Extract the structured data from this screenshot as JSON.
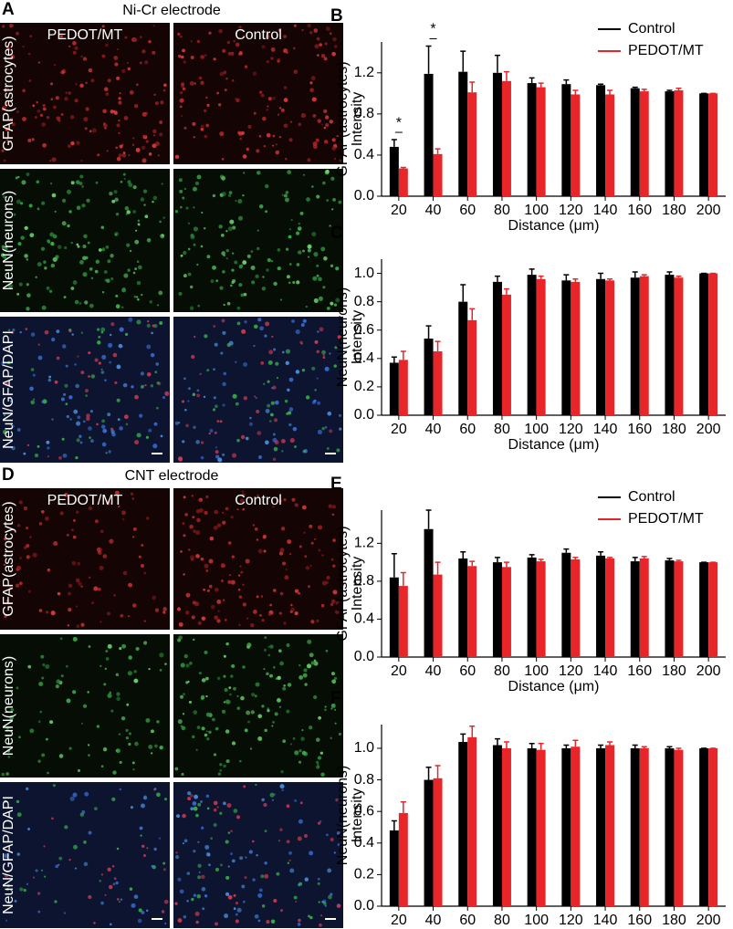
{
  "figure": {
    "sections": [
      {
        "letter": "A",
        "title": "Ni-Cr electrode",
        "columns": [
          "PEDOT/MT",
          "Control"
        ],
        "rows": [
          "GFAP(astrocytes)",
          "NeuN(neurons)",
          "NeuN/GFAP/DAPI"
        ]
      },
      {
        "letter": "D",
        "title": "CNT electrode",
        "columns": [
          "PEDOT/MT",
          "Control"
        ],
        "rows": [
          "GFAP(astrocytes)",
          "NeuN(neurons)",
          "NeuN/GFAP/DAPI"
        ]
      }
    ]
  },
  "chart_data": [
    {
      "type": "bar",
      "panel": "B",
      "xlabel": "Distance (μm)",
      "ylabel": [
        "GFAP(astrocytes)",
        "Intensity"
      ],
      "categories": [
        "20",
        "40",
        "60",
        "80",
        "100",
        "120",
        "140",
        "160",
        "180",
        "200"
      ],
      "series": [
        {
          "name": "Control",
          "color": "#000000",
          "values": [
            0.48,
            1.19,
            1.21,
            1.2,
            1.1,
            1.09,
            1.08,
            1.05,
            1.02,
            1.0
          ],
          "errors": [
            0.07,
            0.27,
            0.2,
            0.17,
            0.05,
            0.04,
            0.01,
            0.01,
            0.01,
            0.0
          ]
        },
        {
          "name": "PEDOT/MT",
          "color": "#e8262a",
          "values": [
            0.27,
            0.41,
            1.01,
            1.12,
            1.06,
            0.99,
            0.99,
            1.02,
            1.03,
            1.0
          ],
          "errors": [
            0.01,
            0.05,
            0.1,
            0.09,
            0.04,
            0.04,
            0.04,
            0.02,
            0.02,
            0.0
          ]
        }
      ],
      "ylim": [
        0,
        1.5
      ],
      "yticks": [
        {
          "value": 0,
          "label": "0.0"
        },
        0.4,
        0.8,
        1.2
      ],
      "legend": "upper right",
      "annotations": [
        {
          "text": "*",
          "category": "20"
        },
        {
          "text": "*",
          "category": "40"
        }
      ]
    },
    {
      "type": "bar",
      "panel": "C",
      "xlabel": "Distance (μm)",
      "ylabel": [
        "NeuN(neurons)",
        "Intensity"
      ],
      "categories": [
        "20",
        "40",
        "60",
        "80",
        "100",
        "120",
        "140",
        "160",
        "180",
        "200"
      ],
      "series": [
        {
          "name": "Control",
          "color": "#000000",
          "values": [
            0.37,
            0.54,
            0.8,
            0.94,
            0.99,
            0.95,
            0.96,
            0.97,
            0.99,
            1.0
          ],
          "errors": [
            0.04,
            0.09,
            0.12,
            0.04,
            0.04,
            0.04,
            0.04,
            0.04,
            0.02,
            0.0
          ]
        },
        {
          "name": "PEDOT/MT",
          "color": "#e8262a",
          "values": [
            0.39,
            0.45,
            0.67,
            0.85,
            0.96,
            0.94,
            0.95,
            0.98,
            0.97,
            1.0
          ],
          "errors": [
            0.06,
            0.07,
            0.08,
            0.04,
            0.02,
            0.02,
            0.01,
            0.01,
            0.01,
            0.0
          ]
        }
      ],
      "ylim": [
        0,
        1.1
      ],
      "yticks": [
        {
          "value": 0,
          "label": "0.0"
        },
        0.2,
        0.4,
        0.6,
        0.8,
        {
          "value": 1,
          "label": "1.0"
        }
      ],
      "legend": "none"
    },
    {
      "type": "bar",
      "panel": "E",
      "xlabel": "Distance (μm)",
      "ylabel": [
        "GFAP(astrocytes)",
        "Intensity"
      ],
      "categories": [
        "20",
        "40",
        "60",
        "80",
        "100",
        "120",
        "140",
        "160",
        "180",
        "200"
      ],
      "series": [
        {
          "name": "Control",
          "color": "#000000",
          "values": [
            0.84,
            1.35,
            1.04,
            1.0,
            1.05,
            1.1,
            1.07,
            1.01,
            1.02,
            1.0
          ],
          "errors": [
            0.25,
            0.2,
            0.07,
            0.05,
            0.03,
            0.04,
            0.04,
            0.04,
            0.02,
            0.0
          ]
        },
        {
          "name": "PEDOT/MT",
          "color": "#e8262a",
          "values": [
            0.75,
            0.87,
            0.96,
            0.95,
            1.01,
            1.03,
            1.04,
            1.04,
            1.01,
            1.0
          ],
          "errors": [
            0.14,
            0.13,
            0.05,
            0.05,
            0.02,
            0.02,
            0.01,
            0.02,
            0.01,
            0.0
          ]
        }
      ],
      "ylim": [
        0,
        1.55
      ],
      "yticks": [
        {
          "value": 0,
          "label": "0.0"
        },
        0.4,
        0.8,
        1.2
      ],
      "legend": "upper right"
    },
    {
      "type": "bar",
      "panel": "F",
      "xlabel": "Distance (μm)",
      "ylabel": [
        "NeuN(neurons)",
        "Intensity"
      ],
      "categories": [
        "20",
        "40",
        "60",
        "80",
        "100",
        "120",
        "140",
        "160",
        "180",
        "200"
      ],
      "series": [
        {
          "name": "Control",
          "color": "#000000",
          "values": [
            0.48,
            0.8,
            1.04,
            1.02,
            1.0,
            1.0,
            1.0,
            1.0,
            1.0,
            1.0
          ],
          "errors": [
            0.06,
            0.08,
            0.05,
            0.04,
            0.03,
            0.02,
            0.02,
            0.02,
            0.01,
            0.0
          ]
        },
        {
          "name": "PEDOT/MT",
          "color": "#e8262a",
          "values": [
            0.59,
            0.81,
            1.07,
            1.0,
            0.99,
            1.01,
            1.02,
            1.0,
            0.99,
            1.0
          ],
          "errors": [
            0.07,
            0.08,
            0.07,
            0.04,
            0.04,
            0.04,
            0.02,
            0.01,
            0.01,
            0.0
          ]
        }
      ],
      "ylim": [
        0,
        1.15
      ],
      "yticks": [
        {
          "value": 0,
          "label": "0.0"
        },
        0.2,
        0.4,
        0.6,
        0.8,
        {
          "value": 1,
          "label": "1.0"
        }
      ],
      "legend": "none"
    }
  ]
}
